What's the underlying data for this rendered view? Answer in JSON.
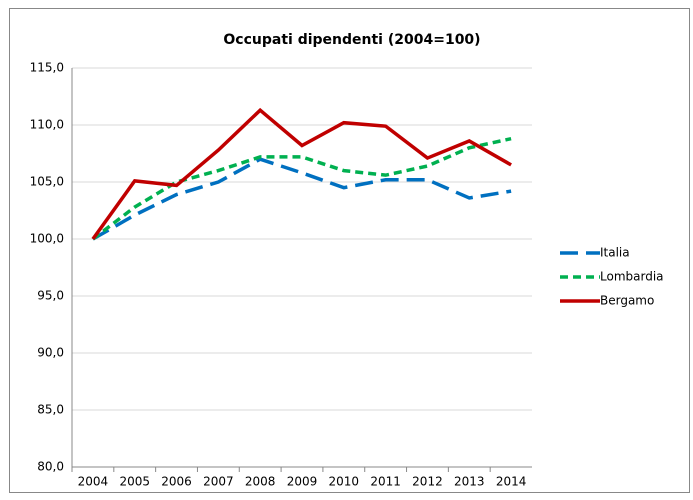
{
  "chart_data": {
    "type": "line",
    "title": "Occupati dipendenti (2004=100)",
    "categories": [
      "2004",
      "2005",
      "2006",
      "2007",
      "2008",
      "2009",
      "2010",
      "2011",
      "2012",
      "2013",
      "2014"
    ],
    "series": [
      {
        "name": "Italia",
        "color": "#0070c0",
        "line_style": "long-dash",
        "values": [
          100,
          102.1,
          103.9,
          105.0,
          107.0,
          105.8,
          104.5,
          105.2,
          105.2,
          103.6,
          104.2
        ]
      },
      {
        "name": "Lombardia",
        "color": "#00b050",
        "line_style": "dash",
        "values": [
          100,
          102.8,
          105.0,
          106.0,
          107.2,
          107.2,
          106.0,
          105.6,
          106.4,
          108.0,
          108.8
        ]
      },
      {
        "name": "Bergamo",
        "color": "#c00000",
        "line_style": "solid",
        "values": [
          100,
          105.1,
          104.7,
          107.8,
          111.3,
          108.2,
          110.2,
          109.9,
          107.1,
          108.6,
          106.5
        ]
      }
    ],
    "ylim": [
      80,
      115
    ],
    "yticks": [
      {
        "value": 80,
        "label": "80,0"
      },
      {
        "value": 85,
        "label": "85,0"
      },
      {
        "value": 90,
        "label": "90,0"
      },
      {
        "value": 95,
        "label": "95,0"
      },
      {
        "value": 100,
        "label": "100,0"
      },
      {
        "value": 105,
        "label": "105,0"
      },
      {
        "value": 110,
        "label": "110,0"
      },
      {
        "value": 115,
        "label": "115,0"
      }
    ],
    "grid": true,
    "legend": "right"
  }
}
